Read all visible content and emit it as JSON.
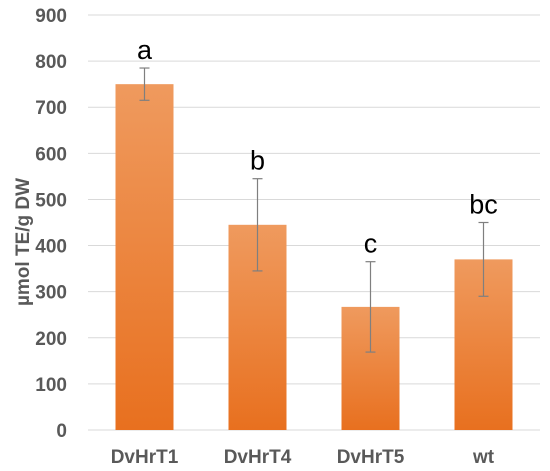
{
  "chart_data": {
    "type": "bar",
    "title": "",
    "xlabel": "",
    "ylabel": "µmol TE/g DW",
    "ylim": [
      0,
      900
    ],
    "yticks": [
      0,
      100,
      200,
      300,
      400,
      500,
      600,
      700,
      800,
      900
    ],
    "grid": true,
    "categories": [
      "DvHrT1",
      "DvHrT4",
      "DvHrT5",
      "wt"
    ],
    "values": [
      750,
      445,
      267,
      370
    ],
    "errors": [
      35,
      100,
      98,
      80
    ],
    "annotations": [
      "a",
      "b",
      "c",
      "bc"
    ],
    "bar_color_top": "#ef9a5e",
    "bar_color_bottom": "#e8701f",
    "error_color": "#7f7f7f",
    "grid_color": "#d9d9d9",
    "text_color": "#595959"
  }
}
